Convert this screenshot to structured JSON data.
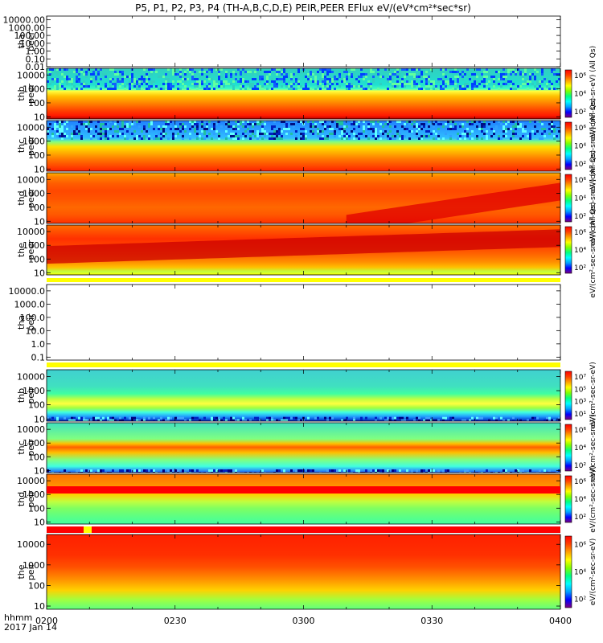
{
  "chart_data": {
    "type": "heatmap",
    "title": "P5, P1, P2, P3, P4 (TH-A,B,C,D,E) PEIR,PEER EFlux eV/(eV*cm²*sec*sr)",
    "x_axis": {
      "label_line1": "hhmm",
      "label_line2": "2017 Jan 14",
      "tick_labels": [
        "0200",
        "0230",
        "0300",
        "0330",
        "0400"
      ],
      "tick_values_min": [
        0,
        30,
        60,
        90,
        120
      ],
      "range_min": [
        0,
        120
      ]
    },
    "panels": [
      {
        "probe": "tha",
        "type": "peer",
        "empty": true,
        "ytick_labels": [
          "10000.00",
          "1000.00",
          "100.00",
          "10.00",
          "1.00",
          "0.10",
          "0.01"
        ],
        "ylim": [
          0.01,
          30000
        ],
        "yscale": "log"
      },
      {
        "probe": "thb",
        "type": "peer",
        "empty": false,
        "ytick_labels": [
          "10000",
          "1000",
          "100",
          "10"
        ],
        "ylim": [
          7,
          30000
        ],
        "yscale": "log",
        "colorbar_ticks": [
          "10⁶",
          "10⁴",
          "10²"
        ],
        "colorbar_label": "eV/(cm²-sec-sr-eV) (All Qs)",
        "profile": [
          [
            7,
            "#b40000"
          ],
          [
            12,
            "#ff1a00"
          ],
          [
            25,
            "#ff3a00"
          ],
          [
            80,
            "#ff7a00"
          ],
          [
            300,
            "#ffc000"
          ],
          [
            700,
            "#ffff40"
          ],
          [
            1000,
            "#40ffbf"
          ],
          [
            2000,
            "#20e0d0"
          ],
          [
            30000,
            "#30d0c0"
          ]
        ],
        "noise_above": 1000,
        "noise_colors": [
          "#1060ff",
          "#30d0c0",
          "#60ffa0",
          "#0040ff"
        ],
        "drift": []
      },
      {
        "probe": "thc",
        "type": "peer",
        "empty": false,
        "ytick_labels": [
          "10000",
          "1000",
          "100",
          "10"
        ],
        "ylim": [
          7,
          30000
        ],
        "yscale": "log",
        "colorbar_ticks": [
          "10⁶",
          "10⁴",
          "10²"
        ],
        "colorbar_label": "eV/(cm²-sec-sr-eV) (All Qs)",
        "profile": [
          [
            7,
            "#ff2000"
          ],
          [
            20,
            "#ff5000"
          ],
          [
            60,
            "#ff8000"
          ],
          [
            150,
            "#ffb000"
          ],
          [
            400,
            "#ffe000"
          ],
          [
            900,
            "#80ff80"
          ],
          [
            1600,
            "#30c0ff"
          ],
          [
            30000,
            "#2080ff"
          ]
        ],
        "noise_above": 1500,
        "noise_colors": [
          "#0020c0",
          "#30a0ff",
          "#60ffff",
          "#001080",
          "#20c0a0"
        ],
        "drift": []
      },
      {
        "probe": "thd",
        "type": "peer",
        "empty": false,
        "ytick_labels": [
          "10000",
          "1000",
          "100",
          "10"
        ],
        "ylim": [
          7,
          30000
        ],
        "yscale": "log",
        "colorbar_ticks": [
          "10⁶",
          "10⁴",
          "10²"
        ],
        "colorbar_label": "eV/(cm²-sec-sr-eV) (All Qs)",
        "profile": [
          [
            7,
            "#ff3000"
          ],
          [
            30,
            "#ff5800"
          ],
          [
            100,
            "#ff6800"
          ],
          [
            400,
            "#ff5400"
          ],
          [
            1500,
            "#ff4800"
          ],
          [
            5000,
            "#ff5c00"
          ],
          [
            15000,
            "#ff8000"
          ],
          [
            30000,
            "#ffb000"
          ]
        ],
        "noise_above": 0,
        "noise_colors": [],
        "drift": [
          {
            "t0": 70,
            "t1": 120,
            "e0": 10,
            "e1": 2000,
            "color": "#e00000"
          }
        ]
      },
      {
        "probe": "the",
        "type": "peer",
        "empty": false,
        "ytick_labels": [
          "10000",
          "1000",
          "100",
          "10"
        ],
        "ylim": [
          7,
          30000
        ],
        "yscale": "log",
        "colorbar_ticks": [
          "10⁶",
          "10⁴",
          "10²"
        ],
        "colorbar_label": "eV/(cm²-sec-sr-eV) (All Qs)",
        "profile": [
          [
            7,
            "#ffff00"
          ],
          [
            12,
            "#c0ff40"
          ],
          [
            25,
            "#ffc000"
          ],
          [
            60,
            "#ff9000"
          ],
          [
            200,
            "#ff6800"
          ],
          [
            700,
            "#ff4800"
          ],
          [
            3000,
            "#ff3000"
          ],
          [
            10000,
            "#ff5000"
          ],
          [
            30000,
            "#ff7000"
          ]
        ],
        "noise_above": 0,
        "noise_colors": [],
        "drift": [
          {
            "t0": 0,
            "t1": 120,
            "e0": 300,
            "e1": 5000,
            "color": "#cc0000"
          }
        ]
      },
      {
        "probe": "tha",
        "type": "peir",
        "empty": true,
        "ytick_labels": [
          "10000.0",
          "1000.0",
          "100.0",
          "10.0",
          "1.0",
          "0.1"
        ],
        "ylim": [
          0.06,
          30000
        ],
        "yscale": "log"
      },
      {
        "probe": "thb",
        "type": "peir",
        "empty": false,
        "ytick_labels": [
          "10000",
          "1000",
          "100",
          "10"
        ],
        "ylim": [
          7,
          30000
        ],
        "yscale": "log",
        "colorbar_ticks": [
          "10⁷",
          "10⁵",
          "10³",
          "10¹"
        ],
        "colorbar_label": "eV/(cm²-sec-sr-eV)",
        "profile": [
          [
            7,
            "#0020c0"
          ],
          [
            15,
            "#20a0ff"
          ],
          [
            30,
            "#40ffe0"
          ],
          [
            60,
            "#a0ff40"
          ],
          [
            120,
            "#ffff40"
          ],
          [
            250,
            "#c0ff40"
          ],
          [
            600,
            "#40ffa0"
          ],
          [
            2000,
            "#40e0c0"
          ],
          [
            30000,
            "#40d0d0"
          ]
        ],
        "noise_above": -1,
        "noise_colors": [
          "#0020c0",
          "#40a0ff",
          "#60ffff",
          "#000080"
        ],
        "drift": []
      },
      {
        "probe": "thc",
        "type": "peir",
        "empty": false,
        "ytick_labels": [
          "10000",
          "1000",
          "100",
          "10"
        ],
        "ylim": [
          7,
          30000
        ],
        "yscale": "log",
        "colorbar_ticks": [
          "10⁶",
          "10⁴",
          "10²"
        ],
        "colorbar_label": "eV/(cm²-sec-sr-eV)",
        "profile": [
          [
            7,
            "#2060ff"
          ],
          [
            20,
            "#40ffe0"
          ],
          [
            60,
            "#80ff80"
          ],
          [
            200,
            "#ffc000"
          ],
          [
            500,
            "#ff6000"
          ],
          [
            900,
            "#ffc000"
          ],
          [
            2000,
            "#80ff80"
          ],
          [
            30000,
            "#40e0c0"
          ]
        ],
        "noise_above": -2,
        "noise_colors": [
          "#0020c0",
          "#40a0ff",
          "#60ffff",
          "#000080"
        ],
        "drift": []
      },
      {
        "probe": "thd",
        "type": "peir",
        "empty": false,
        "ytick_labels": [
          "10000",
          "1000",
          "100",
          "10"
        ],
        "ylim": [
          7,
          30000
        ],
        "yscale": "log",
        "colorbar_ticks": [
          "10⁶",
          "10⁴",
          "10²"
        ],
        "colorbar_label": "eV/(cm²-sec-sr-eV)",
        "profile": [
          [
            7,
            "#40ffa0"
          ],
          [
            30,
            "#60ff80"
          ],
          [
            100,
            "#80ff60"
          ],
          [
            300,
            "#c0ff40"
          ],
          [
            1000,
            "#ffd000"
          ],
          [
            5000,
            "#ff9000"
          ],
          [
            30000,
            "#ff7000"
          ]
        ],
        "noise_above": 0,
        "noise_colors": [],
        "drift": []
      },
      {
        "probe": "the",
        "type": "peir",
        "empty": false,
        "ytick_labels": [
          "10000",
          "1000",
          "100",
          "10"
        ],
        "ylim": [
          7,
          30000
        ],
        "yscale": "log",
        "colorbar_ticks": [
          "10⁶",
          "10⁴",
          "10²"
        ],
        "colorbar_label": "eV/(cm²-sec-sr-eV)",
        "profile": [
          [
            7,
            "#60ff80"
          ],
          [
            20,
            "#a0ff40"
          ],
          [
            60,
            "#ffd000"
          ],
          [
            200,
            "#ff9000"
          ],
          [
            800,
            "#ff5000"
          ],
          [
            3000,
            "#ff3000"
          ],
          [
            30000,
            "#ff2000"
          ]
        ],
        "noise_above": 0,
        "noise_colors": [],
        "drift": []
      }
    ],
    "colorbar_scale": [
      "#800080",
      "#0000ff",
      "#00a0ff",
      "#00ffff",
      "#00ff80",
      "#80ff00",
      "#ffff00",
      "#ffa000",
      "#ff4000",
      "#ff0000"
    ]
  }
}
